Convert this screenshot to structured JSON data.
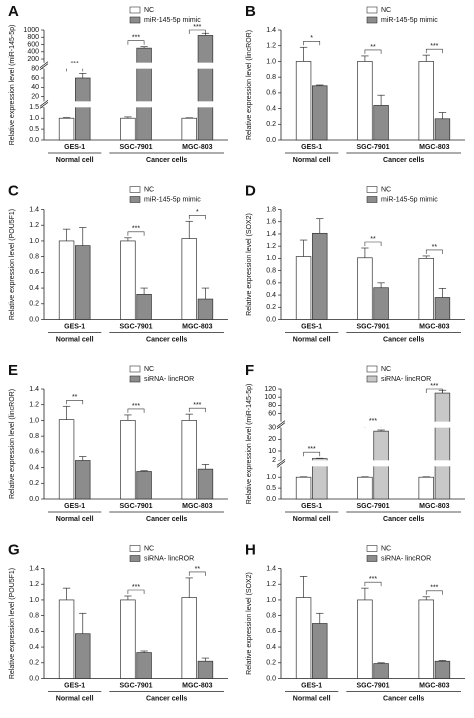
{
  "chart_data": [
    {
      "type": "bar",
      "panel_label": "A",
      "ylabel": "Relative expression level (miR-145-5p)",
      "categories": [
        "GES-1",
        "SGC-7901",
        "MGC-803"
      ],
      "group_labels": [
        "Normal cell",
        "Cancer cells"
      ],
      "series": [
        {
          "name": "NC",
          "color": "#ffffff",
          "values": [
            1.0,
            1.0,
            1.0
          ],
          "errors": [
            0.03,
            0.06,
            0.02
          ]
        },
        {
          "name": "miR-145-5p mimic",
          "color": "#8c8c8c",
          "values": [
            60,
            500,
            850
          ],
          "errors": [
            10,
            40,
            60
          ]
        }
      ],
      "significance": [
        "***",
        "***",
        "***"
      ],
      "axis_segments": [
        {
          "ylim": [
            0,
            1.5
          ],
          "yticks": [
            {
              "value": 0,
              "label": "0.0"
            },
            0.5,
            {
              "value": 1,
              "label": "1.0"
            },
            1.5
          ]
        },
        {
          "ylim": [
            10,
            80
          ],
          "yticks": [
            20,
            40,
            60,
            80
          ]
        },
        {
          "ylim": [
            100,
            1000
          ],
          "yticks": [
            200,
            400,
            600,
            800,
            1000
          ]
        }
      ]
    },
    {
      "type": "bar",
      "panel_label": "B",
      "ylabel": "Relative expression level (lincROR)",
      "categories": [
        "GES-1",
        "SGC-7901",
        "MGC-803"
      ],
      "group_labels": [
        "Normal cell",
        "Cancer cells"
      ],
      "series": [
        {
          "name": "NC",
          "color": "#ffffff",
          "values": [
            1.0,
            1.0,
            1.0
          ],
          "errors": [
            0.18,
            0.07,
            0.08
          ]
        },
        {
          "name": "miR-145-5p mimic",
          "color": "#8c8c8c",
          "values": [
            0.69,
            0.44,
            0.27
          ],
          "errors": [
            0.01,
            0.13,
            0.08
          ]
        }
      ],
      "significance": [
        "*",
        "**",
        "***"
      ],
      "ylim": [
        0,
        1.4
      ],
      "yticks": [
        {
          "value": 0,
          "label": "0.0"
        },
        0.2,
        0.4,
        0.6,
        0.8,
        {
          "value": 1,
          "label": "1.0"
        },
        1.2,
        1.4
      ]
    },
    {
      "type": "bar",
      "panel_label": "C",
      "ylabel": "Relative expression level (POU5F1)",
      "categories": [
        "GES-1",
        "SGC-7901",
        "MGC-803"
      ],
      "group_labels": [
        "Normal cell",
        "Cancer cells"
      ],
      "series": [
        {
          "name": "NC",
          "color": "#ffffff",
          "values": [
            1.0,
            1.0,
            1.03
          ],
          "errors": [
            0.15,
            0.04,
            0.22
          ]
        },
        {
          "name": "miR-145-5p mimic",
          "color": "#8c8c8c",
          "values": [
            0.94,
            0.32,
            0.26
          ],
          "errors": [
            0.23,
            0.08,
            0.14
          ]
        }
      ],
      "significance": [
        null,
        "***",
        "*"
      ],
      "ylim": [
        0,
        1.4
      ],
      "yticks": [
        {
          "value": 0,
          "label": "0.0"
        },
        0.2,
        0.4,
        0.6,
        0.8,
        {
          "value": 1,
          "label": "1.0"
        },
        1.2,
        1.4
      ]
    },
    {
      "type": "bar",
      "panel_label": "D",
      "ylabel": "Relative expression level (SOX2)",
      "categories": [
        "GES-1",
        "SGC-7901",
        "MGC-803"
      ],
      "group_labels": [
        "Normal cell",
        "Cancer cells"
      ],
      "series": [
        {
          "name": "NC",
          "color": "#ffffff",
          "values": [
            1.03,
            1.01,
            1.0
          ],
          "errors": [
            0.27,
            0.16,
            0.04
          ]
        },
        {
          "name": "miR-145-5p mimic",
          "color": "#8c8c8c",
          "values": [
            1.41,
            0.52,
            0.36
          ],
          "errors": [
            0.24,
            0.08,
            0.15
          ]
        }
      ],
      "significance": [
        null,
        "**",
        "**"
      ],
      "ylim": [
        0,
        1.8
      ],
      "yticks": [
        {
          "value": 0,
          "label": "0.0"
        },
        0.2,
        0.4,
        0.6,
        0.8,
        {
          "value": 1,
          "label": "1.0"
        },
        1.2,
        1.4,
        1.6,
        1.8
      ]
    },
    {
      "type": "bar",
      "panel_label": "E",
      "ylabel": "Relative expression level (lincROR)",
      "categories": [
        "GES-1",
        "SGC-7901",
        "MGC-803"
      ],
      "group_labels": [
        "Normal cell",
        "Cancer cells"
      ],
      "series": [
        {
          "name": "NC",
          "color": "#ffffff",
          "values": [
            1.01,
            1.0,
            1.0
          ],
          "errors": [
            0.17,
            0.07,
            0.08
          ]
        },
        {
          "name": "siRNA- lincROR",
          "color": "#8c8c8c",
          "values": [
            0.49,
            0.35,
            0.38
          ],
          "errors": [
            0.05,
            0.01,
            0.06
          ]
        }
      ],
      "significance": [
        "**",
        "***",
        "***"
      ],
      "ylim": [
        0,
        1.4
      ],
      "yticks": [
        {
          "value": 0,
          "label": "0.0"
        },
        0.2,
        0.4,
        0.6,
        0.8,
        {
          "value": 1,
          "label": "1.0"
        },
        1.2,
        1.4
      ]
    },
    {
      "type": "bar",
      "panel_label": "F",
      "ylabel": "Relative expression level (miR-145-5p)",
      "categories": [
        "GES-1",
        "SGC-7901",
        "MGC-803"
      ],
      "group_labels": [
        "Normal cell",
        "Cancer cells"
      ],
      "series": [
        {
          "name": "NC",
          "color": "#ffffff",
          "values": [
            1.0,
            1.0,
            1.0
          ],
          "errors": [
            0.02,
            0.02,
            0.02
          ]
        },
        {
          "name": "siRNA- lincROR",
          "color": "#c8c8c8",
          "values": [
            3.5,
            27,
            110
          ],
          "errors": [
            0.3,
            1,
            7
          ]
        }
      ],
      "significance": [
        "***",
        "***",
        "***"
      ],
      "axis_segments": [
        {
          "ylim": [
            0,
            1.5
          ],
          "yticks": [
            {
              "value": 0,
              "label": "0.0"
            },
            0.5,
            {
              "value": 1,
              "label": "1.0"
            }
          ]
        },
        {
          "ylim": [
            2,
            30
          ],
          "yticks": [
            2,
            10,
            20,
            30
          ]
        },
        {
          "ylim": [
            40,
            120
          ],
          "yticks": [
            60,
            80,
            100,
            120
          ]
        }
      ]
    },
    {
      "type": "bar",
      "panel_label": "G",
      "ylabel": "Relative expression level (POU5F1)",
      "categories": [
        "GES-1",
        "SGC-7901",
        "MGC-803"
      ],
      "group_labels": [
        "Normal cell",
        "Cancer cells"
      ],
      "series": [
        {
          "name": "NC",
          "color": "#ffffff",
          "values": [
            1.0,
            1.0,
            1.03
          ],
          "errors": [
            0.15,
            0.05,
            0.25
          ]
        },
        {
          "name": "siRNA- lincROR",
          "color": "#8c8c8c",
          "values": [
            0.57,
            0.33,
            0.22
          ],
          "errors": [
            0.26,
            0.02,
            0.04
          ]
        }
      ],
      "significance": [
        null,
        "***",
        "**"
      ],
      "ylim": [
        0,
        1.4
      ],
      "yticks": [
        {
          "value": 0,
          "label": "0.0"
        },
        0.2,
        0.4,
        0.6,
        0.8,
        {
          "value": 1,
          "label": "1.0"
        },
        1.2,
        1.4
      ]
    },
    {
      "type": "bar",
      "panel_label": "H",
      "ylabel": "Relative expression level (SOX2)",
      "categories": [
        "GES-1",
        "SGC-7901",
        "MGC-803"
      ],
      "group_labels": [
        "Normal cell",
        "Cancer cells"
      ],
      "series": [
        {
          "name": "NC",
          "color": "#ffffff",
          "values": [
            1.03,
            1.0,
            1.0
          ],
          "errors": [
            0.27,
            0.15,
            0.04
          ]
        },
        {
          "name": "siRNA- lincROR",
          "color": "#8c8c8c",
          "values": [
            0.7,
            0.19,
            0.22
          ],
          "errors": [
            0.13,
            0.01,
            0.01
          ]
        }
      ],
      "significance": [
        null,
        "***",
        "***"
      ],
      "ylim": [
        0,
        1.4
      ],
      "yticks": [
        {
          "value": 0,
          "label": "0.0"
        },
        0.2,
        0.4,
        0.6,
        0.8,
        {
          "value": 1,
          "label": "1.0"
        },
        1.2,
        1.4
      ]
    }
  ]
}
